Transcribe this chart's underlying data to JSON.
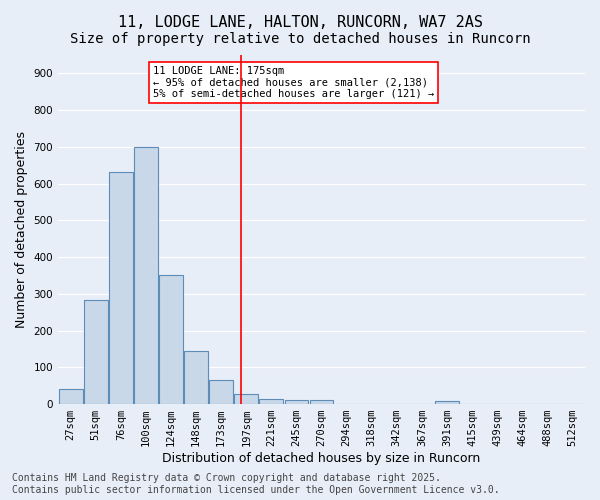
{
  "title_line1": "11, LODGE LANE, HALTON, RUNCORN, WA7 2AS",
  "title_line2": "Size of property relative to detached houses in Runcorn",
  "xlabel": "Distribution of detached houses by size in Runcorn",
  "ylabel": "Number of detached properties",
  "footer": "Contains HM Land Registry data © Crown copyright and database right 2025.\nContains public sector information licensed under the Open Government Licence v3.0.",
  "bin_labels": [
    "27sqm",
    "51sqm",
    "76sqm",
    "100sqm",
    "124sqm",
    "148sqm",
    "173sqm",
    "197sqm",
    "221sqm",
    "245sqm",
    "270sqm",
    "294sqm",
    "318sqm",
    "342sqm",
    "367sqm",
    "391sqm",
    "415sqm",
    "439sqm",
    "464sqm",
    "488sqm",
    "512sqm"
  ],
  "bar_values": [
    42,
    283,
    632,
    700,
    350,
    145,
    65,
    28,
    15,
    11,
    11,
    0,
    0,
    0,
    0,
    8,
    0,
    0,
    0,
    0,
    0
  ],
  "bar_color": "#c8d8e8",
  "bar_edge_color": "#5b8db8",
  "vline_x": 6.8,
  "vline_color": "red",
  "annotation_text": "11 LODGE LANE: 175sqm\n← 95% of detached houses are smaller (2,138)\n5% of semi-detached houses are larger (121) →",
  "annotation_box_color": "white",
  "annotation_box_edge": "red",
  "background_color": "#e8eef8",
  "plot_background": "#e8eef8",
  "ylim": [
    0,
    950
  ],
  "yticks": [
    0,
    100,
    200,
    300,
    400,
    500,
    600,
    700,
    800,
    900
  ],
  "grid_color": "#ffffff",
  "title_fontsize": 11,
  "subtitle_fontsize": 10,
  "axis_label_fontsize": 9,
  "tick_fontsize": 7.5,
  "footer_fontsize": 7
}
